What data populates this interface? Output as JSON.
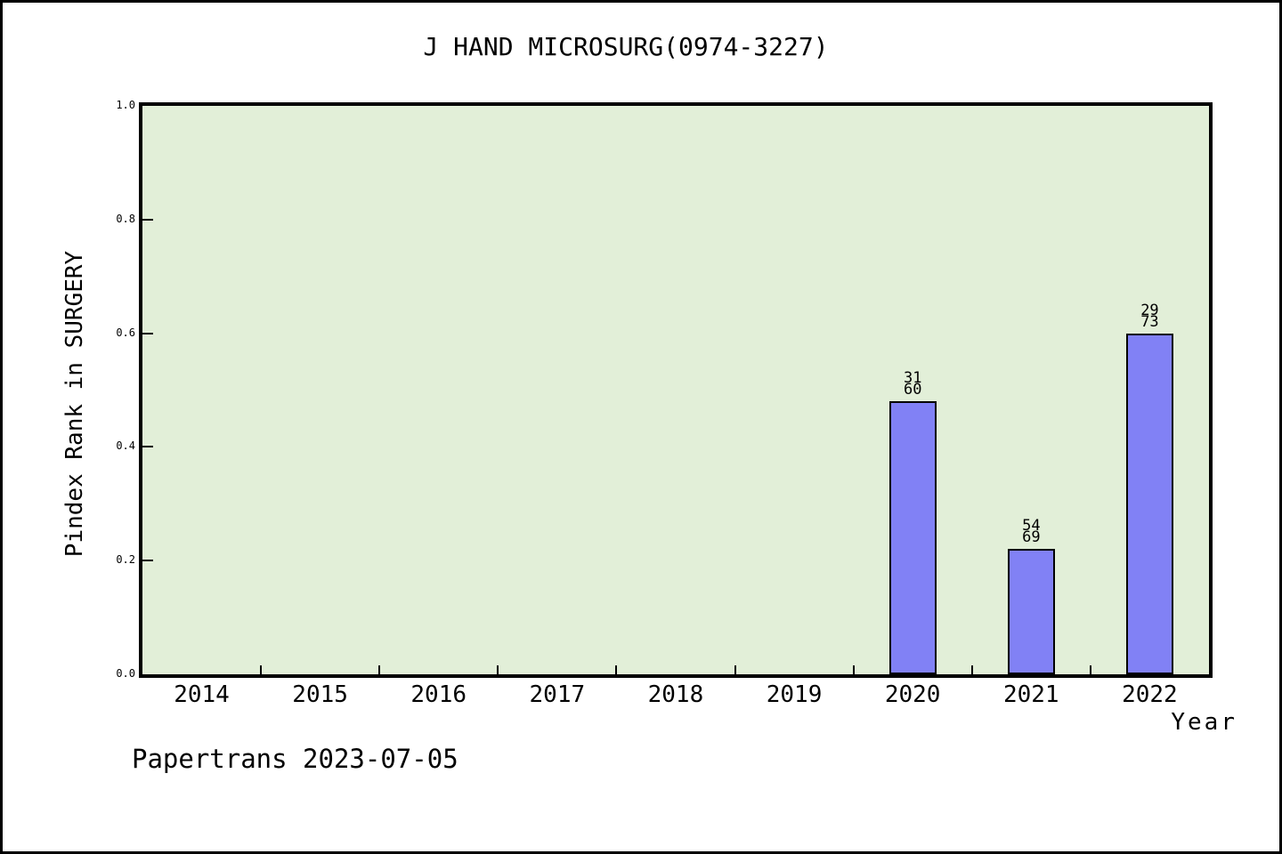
{
  "title": "J HAND MICROSURG(0974-3227)",
  "footer": "Papertrans 2023-07-05",
  "chart_data": {
    "type": "bar",
    "title": "J HAND MICROSURG(0974-3227)",
    "xlabel": "Year",
    "ylabel": "Pindex Rank in SURGERY",
    "categories": [
      "2014",
      "2015",
      "2016",
      "2017",
      "2018",
      "2019",
      "2020",
      "2021",
      "2022"
    ],
    "bars": [
      {
        "category": "2020",
        "value": 0.48,
        "label_top": "31",
        "label_bottom": "60"
      },
      {
        "category": "2021",
        "value": 0.22,
        "label_top": "54",
        "label_bottom": "69"
      },
      {
        "category": "2022",
        "value": 0.6,
        "label_top": "29",
        "label_bottom": "73"
      }
    ],
    "ylim": [
      0.0,
      1.0
    ],
    "yticks": [
      "0.0",
      "0.2",
      "0.4",
      "0.6",
      "0.8",
      "1.0"
    ],
    "grid": "off",
    "legend": "none",
    "colors": {
      "bar_fill": "#8181f5",
      "bar_edge": "#000000",
      "plot_background": "#e2efd8",
      "frame": "#000000",
      "page_background": "#ffffff",
      "text": "#000000"
    }
  }
}
